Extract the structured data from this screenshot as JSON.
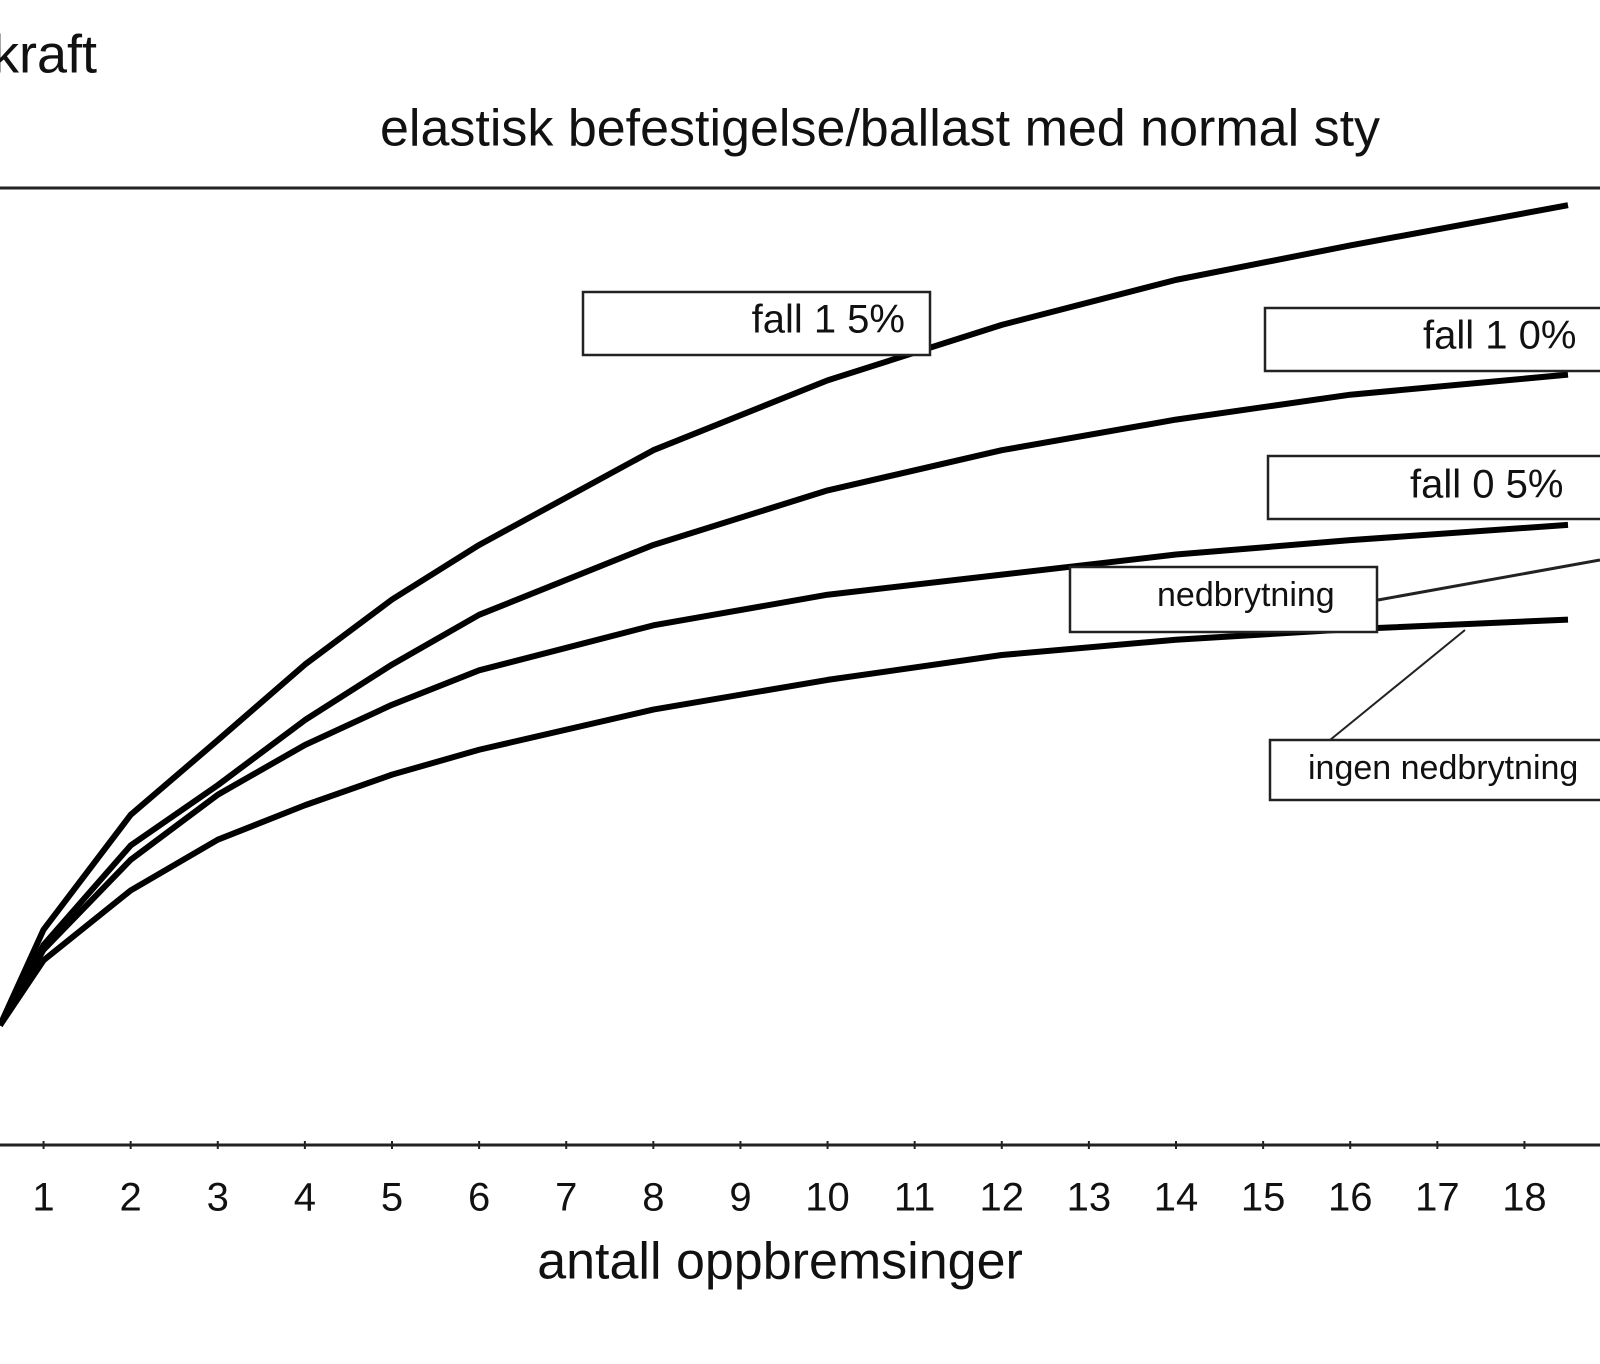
{
  "chart_data": {
    "type": "line",
    "title": "elastisk befestigelse/ballast med normal sty",
    "ylabel": "kraft",
    "xlabel": "antall oppbremsinger",
    "x": [
      0.5,
      1,
      2,
      3,
      4,
      5,
      6,
      8,
      10,
      12,
      14,
      16,
      18.5
    ],
    "xlim": [
      0.5,
      18.5
    ],
    "xticks": [
      1,
      2,
      3,
      4,
      5,
      6,
      7,
      8,
      9,
      10,
      11,
      12,
      13,
      14,
      15,
      16,
      17,
      18
    ],
    "ylim": [
      0,
      100
    ],
    "series": [
      {
        "name": "fall 1 5%",
        "color": "#000000",
        "values": [
          12.5,
          22.5,
          34.5,
          42.3,
          50.2,
          57.0,
          62.7,
          72.6,
          79.9,
          85.7,
          90.4,
          94.0,
          98.2
        ]
      },
      {
        "name": "fall 1 0%",
        "color": "#000000",
        "values": [
          12.5,
          20.9,
          31.3,
          37.6,
          44.4,
          50.2,
          55.4,
          62.7,
          68.4,
          72.6,
          75.8,
          78.4,
          80.5
        ]
      },
      {
        "name": "fall 0 5%",
        "color": "#000000",
        "values": [
          12.5,
          20.4,
          29.8,
          36.6,
          41.8,
          46.0,
          49.6,
          54.3,
          57.5,
          59.6,
          61.7,
          63.2,
          64.8
        ]
      },
      {
        "name": "ingen nedbrytning",
        "color": "#000000",
        "values": [
          12.5,
          19.3,
          26.6,
          31.9,
          35.5,
          38.7,
          41.3,
          45.5,
          48.6,
          51.2,
          52.8,
          53.9,
          54.9
        ]
      }
    ],
    "annotations": [
      "nedbrytning"
    ]
  }
}
